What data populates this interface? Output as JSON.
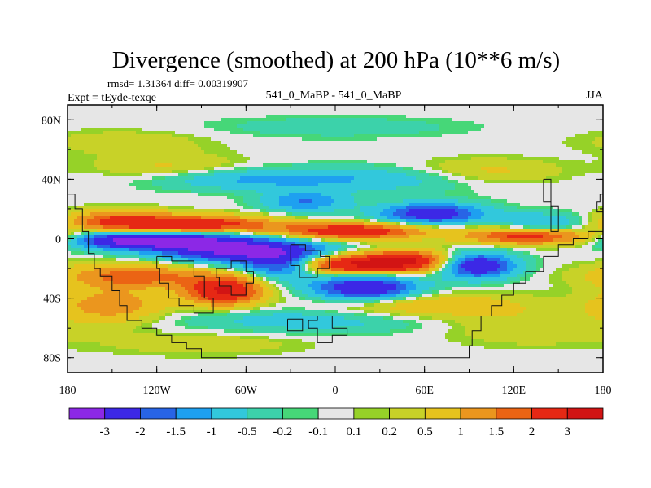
{
  "chart_data": {
    "type": "heatmap",
    "title": "Divergence (smoothed) at 200 hPa (10**6 m/s)",
    "stats_text": "rmsd= 1.31364 diff= 0.00319907",
    "left_label": "Expt = tEyde-texqe",
    "center_label": "541_0_MaBP - 541_0_MaBP",
    "right_label": "JJA",
    "x_range": [
      -180,
      180
    ],
    "y_range": [
      -90,
      90
    ],
    "x_ticks": [
      {
        "value": -180,
        "label": "180"
      },
      {
        "value": -120,
        "label": "120W"
      },
      {
        "value": -60,
        "label": "60W"
      },
      {
        "value": 0,
        "label": "0"
      },
      {
        "value": 60,
        "label": "60E"
      },
      {
        "value": 120,
        "label": "120E"
      },
      {
        "value": 180,
        "label": "180"
      }
    ],
    "y_ticks": [
      {
        "value": 80,
        "label": "80N"
      },
      {
        "value": 40,
        "label": "40N"
      },
      {
        "value": 0,
        "label": "0"
      },
      {
        "value": -40,
        "label": "40S"
      },
      {
        "value": -80,
        "label": "80S"
      }
    ],
    "colorbar": {
      "levels": [
        -3,
        -2,
        -1.5,
        -1,
        -0.5,
        -0.2,
        -0.1,
        0.1,
        0.2,
        0.5,
        1,
        1.5,
        2,
        3
      ],
      "labels": [
        "-3",
        "-2",
        "-1.5",
        "-1",
        "-0.5",
        "-0.2",
        "-0.1",
        "0.1",
        "0.2",
        "0.5",
        "1",
        "1.5",
        "2",
        "3"
      ],
      "colors": [
        "#8c28e6",
        "#3c28e6",
        "#2864e6",
        "#1ea0f0",
        "#32c8dc",
        "#3cd2aa",
        "#46d778",
        "#e6e6e6",
        "#96d228",
        "#c8d228",
        "#e6c31e",
        "#eb961e",
        "#eb6414",
        "#e62814",
        "#d21414"
      ]
    },
    "features": [
      {
        "lon": -60,
        "lat": -8,
        "value": -3.2,
        "slon": 40,
        "slat": 6
      },
      {
        "lon": -105,
        "lat": -2,
        "value": -2.6,
        "slon": 30,
        "slat": 4
      },
      {
        "lon": -150,
        "lat": -1,
        "value": -2.2,
        "slon": 20,
        "slat": 4
      },
      {
        "lon": -35,
        "lat": -18,
        "value": -2.4,
        "slon": 18,
        "slat": 6
      },
      {
        "lon": 20,
        "lat": -33,
        "value": -3.0,
        "slon": 25,
        "slat": 6
      },
      {
        "lon": 95,
        "lat": -18,
        "value": -3.0,
        "slon": 18,
        "slat": 6
      },
      {
        "lon": 65,
        "lat": 17,
        "value": -2.6,
        "slon": 25,
        "slat": 5
      },
      {
        "lon": -20,
        "lat": 25,
        "value": -1.5,
        "slon": 20,
        "slat": 5
      },
      {
        "lon": 140,
        "lat": 10,
        "value": -1.2,
        "slon": 20,
        "slat": 5
      },
      {
        "lon": -90,
        "lat": 10,
        "value": 2.5,
        "slon": 35,
        "slat": 4
      },
      {
        "lon": -145,
        "lat": 12,
        "value": 2.0,
        "slon": 25,
        "slat": 5
      },
      {
        "lon": 10,
        "lat": 5,
        "value": 2.8,
        "slon": 35,
        "slat": 4
      },
      {
        "lon": 130,
        "lat": 2,
        "value": 2.4,
        "slon": 30,
        "slat": 4
      },
      {
        "lon": 5,
        "lat": -17,
        "value": 3.0,
        "slon": 30,
        "slat": 5
      },
      {
        "lon": 50,
        "lat": -15,
        "value": 2.6,
        "slon": 22,
        "slat": 5
      },
      {
        "lon": -75,
        "lat": -35,
        "value": 3.0,
        "slon": 18,
        "slat": 7
      },
      {
        "lon": -135,
        "lat": -25,
        "value": 1.8,
        "slon": 35,
        "slat": 6
      },
      {
        "lon": -150,
        "lat": -45,
        "value": 1.4,
        "slon": 25,
        "slat": 8
      },
      {
        "lon": 60,
        "lat": -45,
        "value": 1.0,
        "slon": 50,
        "slat": 6
      },
      {
        "lon": -60,
        "lat": 40,
        "value": -1.0,
        "slon": 45,
        "slat": 5
      },
      {
        "lon": 30,
        "lat": 40,
        "value": -0.8,
        "slon": 50,
        "slat": 6
      },
      {
        "lon": -110,
        "lat": 48,
        "value": 0.6,
        "slon": 35,
        "slat": 6
      },
      {
        "lon": 100,
        "lat": 45,
        "value": 0.7,
        "slon": 35,
        "slat": 6
      },
      {
        "lon": -20,
        "lat": -55,
        "value": -0.8,
        "slon": 60,
        "slat": 6
      },
      {
        "lon": 130,
        "lat": -60,
        "value": 0.5,
        "slon": 40,
        "slat": 8
      },
      {
        "lon": -90,
        "lat": -70,
        "value": 0.4,
        "slon": 50,
        "slat": 6
      },
      {
        "lon": 0,
        "lat": 75,
        "value": -0.4,
        "slon": 60,
        "slat": 5
      },
      {
        "lon": -140,
        "lat": 65,
        "value": 0.4,
        "slon": 40,
        "slat": 6
      }
    ]
  }
}
